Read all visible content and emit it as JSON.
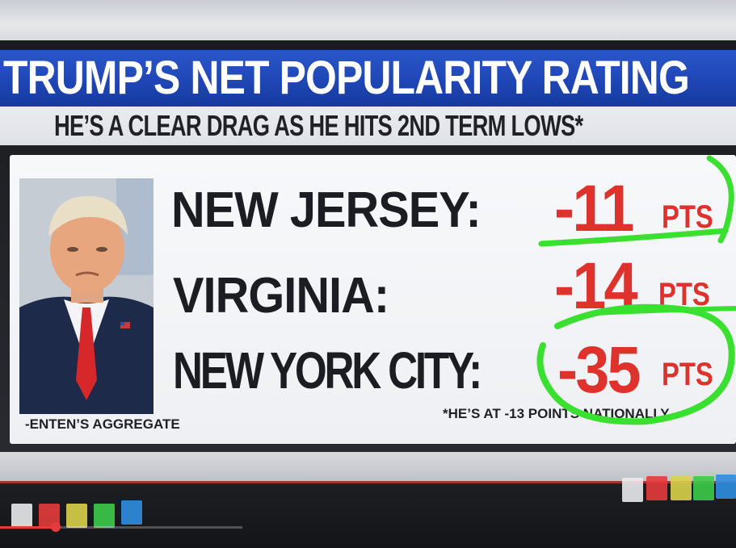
{
  "header": {
    "title": "TRUMP’S NET POPULARITY RATING",
    "subtitle": "HE’S A CLEAR DRAG AS HE HITS 2ND TERM LOWS*"
  },
  "rows": [
    {
      "label": "NEW JERSEY:",
      "value": "-11",
      "unit": "PTS"
    },
    {
      "label": "VIRGINIA:",
      "value": "-14",
      "unit": "PTS"
    },
    {
      "label": "NEW YORK CITY:",
      "value": "-35",
      "unit": "PTS"
    }
  ],
  "footnote_left": "-ENTEN’S AGGREGATE",
  "footnote_right": "*HE’S AT -13 POINTS NATIONALLY",
  "progress": {
    "fraction": 0.23
  },
  "colors": {
    "title_bar": "#1f46b6",
    "value_red": "#e0322c",
    "marker_green": "#39e02f",
    "tiles": [
      "#e9eaec",
      "#e33b3b",
      "#d8d24a",
      "#3ccb4a",
      "#2f8ee0"
    ]
  }
}
